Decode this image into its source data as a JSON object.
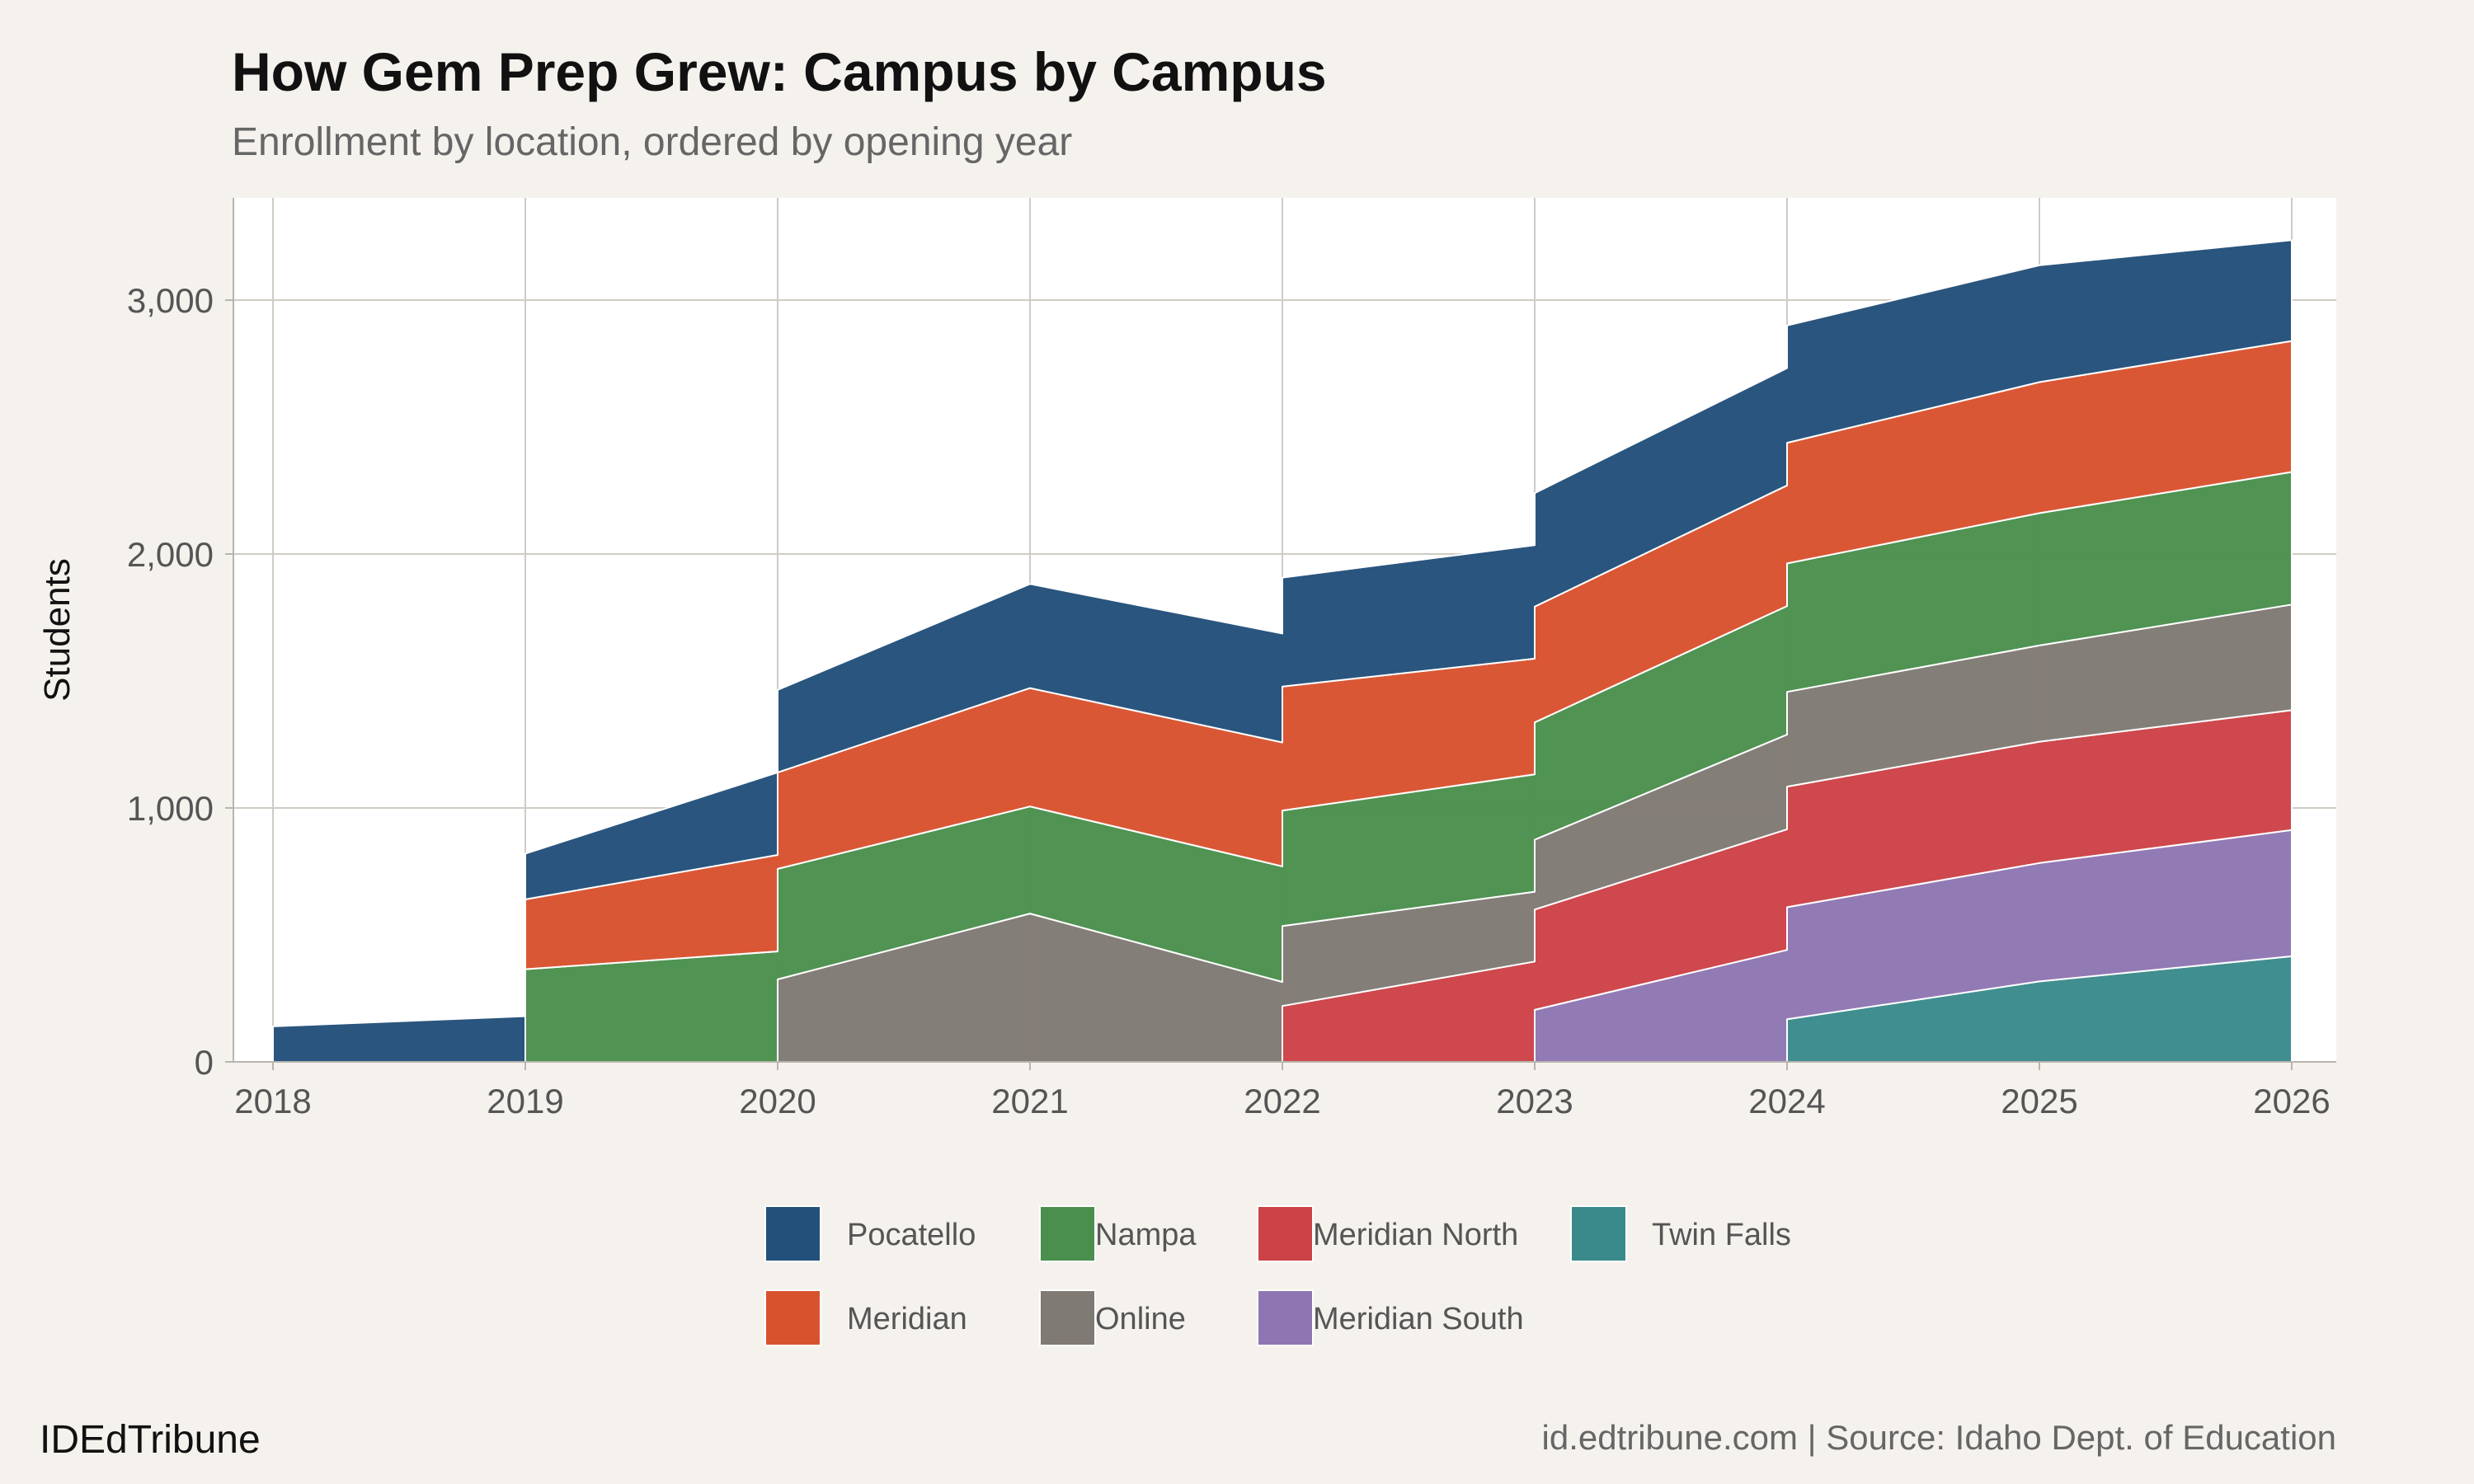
{
  "chart_data": {
    "type": "area",
    "stacked": true,
    "title": "How Gem Prep Grew: Campus by Campus",
    "subtitle": "Enrollment by location, ordered by opening year",
    "xlabel": "",
    "ylabel": "Students",
    "x": [
      2018,
      2019,
      2020,
      2021,
      2022,
      2023,
      2024,
      2025,
      2026
    ],
    "xlim": [
      2018,
      2026
    ],
    "ylim": [
      0,
      3400
    ],
    "yticks": [
      0,
      1000,
      2000,
      3000
    ],
    "ytick_labels": [
      "0",
      "1,000",
      "2,000",
      "3,000"
    ],
    "xtick_labels": [
      "2018",
      "2019",
      "2020",
      "2021",
      "2022",
      "2023",
      "2024",
      "2025",
      "2026"
    ],
    "grid": true,
    "legend_position": "bottom",
    "series": [
      {
        "name": "Pocatello",
        "color": "#23507a",
        "start": 2018,
        "values": [
          140,
          180,
          325,
          410,
          429,
          447,
          462,
          460,
          397
        ]
      },
      {
        "name": "Meridian",
        "color": "#d9522e",
        "start": 2019,
        "values": [
          null,
          275,
          380,
          466,
          488,
          456,
          475,
          516,
          516
        ]
      },
      {
        "name": "Nampa",
        "color": "#4a8f4d",
        "start": 2019,
        "values": [
          null,
          365,
          435,
          422,
          455,
          462,
          506,
          521,
          522
        ]
      },
      {
        "name": "Online",
        "color": "#807a74",
        "start": 2020,
        "values": [
          null,
          null,
          325,
          584,
          315,
          275,
          373,
          379,
          416
        ]
      },
      {
        "name": "Meridian North",
        "color": "#cc4247",
        "start": 2022,
        "values": [
          null,
          null,
          null,
          null,
          220,
          395,
          475,
          478,
          472
        ]
      },
      {
        "name": "Meridian South",
        "color": "#8e76b3",
        "start": 2023,
        "values": [
          null,
          null,
          null,
          null,
          null,
          205,
          441,
          466,
          497
        ]
      },
      {
        "name": "Twin Falls",
        "color": "#3a8a8c",
        "start": 2024,
        "values": [
          null,
          null,
          null,
          null,
          null,
          null,
          168,
          317,
          416
        ]
      }
    ]
  },
  "footer": {
    "brand": "IDEdTribune",
    "source": "id.edtribune.com | Source: Idaho Dept. of Education"
  }
}
